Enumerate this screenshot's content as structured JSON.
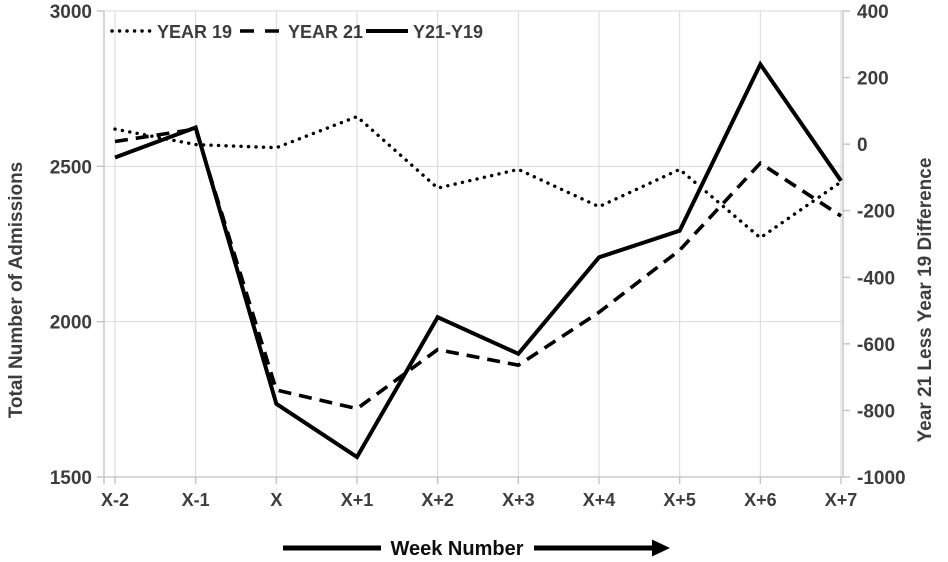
{
  "chart_data": {
    "type": "line",
    "title": "",
    "categories": [
      "X-2",
      "X-1",
      "X",
      "X+1",
      "X+2",
      "X+3",
      "X+4",
      "X+5",
      "X+6",
      "X+7"
    ],
    "series": [
      {
        "name": "YEAR 19",
        "axis": "left",
        "style": "dotted",
        "values": [
          2620,
          2570,
          2560,
          2660,
          2430,
          2490,
          2370,
          2490,
          2270,
          2450
        ]
      },
      {
        "name": "YEAR 21",
        "axis": "left",
        "style": "dashed",
        "values": [
          2580,
          2620,
          1780,
          1720,
          1910,
          1860,
          2030,
          2230,
          2510,
          2340
        ]
      },
      {
        "name": "Y21-Y19",
        "axis": "right",
        "style": "solid",
        "values": [
          -40,
          50,
          -780,
          -940,
          -520,
          -630,
          -340,
          -260,
          240,
          -110
        ]
      }
    ],
    "left_axis": {
      "label": "Total Number of Admissions",
      "min": 1500,
      "max": 3000,
      "ticks": [
        3000,
        2500,
        2000,
        1500
      ],
      "ylim": [
        1500,
        3000
      ]
    },
    "right_axis": {
      "label": "Year 21 Less Year 19 Difference",
      "min": -1000,
      "max": 400,
      "ticks": [
        400,
        200,
        0,
        -200,
        -400,
        -600,
        -800,
        -1000
      ],
      "ylim": [
        -1000,
        400
      ]
    },
    "xlabel": "Week Number",
    "legend": {
      "position": "top-inside",
      "entries": [
        "YEAR 19",
        "YEAR 21",
        "Y21-Y19"
      ]
    },
    "grid": true,
    "colors": {
      "line": "#000000",
      "grid": "#d9d9d9",
      "axis": "#bfbfbf",
      "text": "#3d3d3d",
      "xlabel_text": "#0d0d0d"
    }
  }
}
